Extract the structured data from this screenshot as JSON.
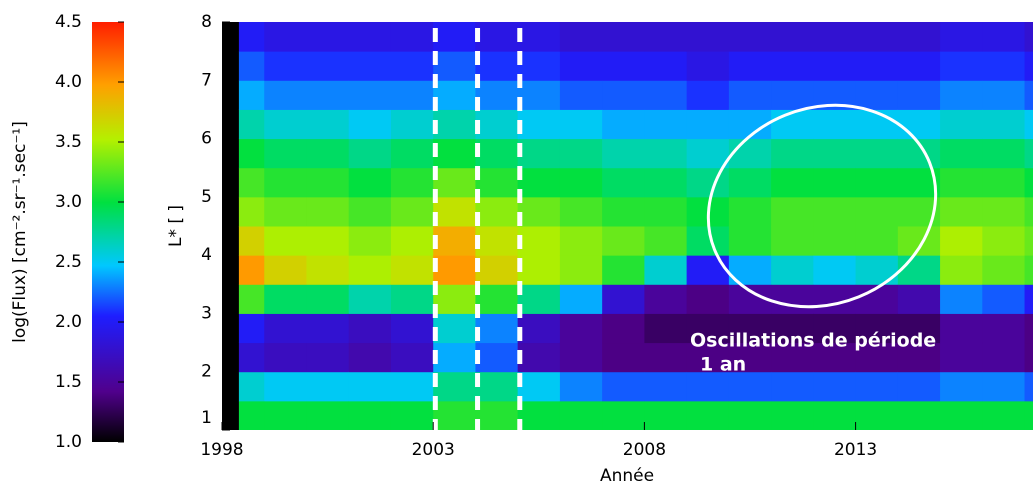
{
  "chart_data": {
    "type": "heatmap",
    "x_label": "Année",
    "y_label": "L* [ ]",
    "colorbar_label": "log(Flux) [cm⁻².sr⁻¹.sec⁻¹]",
    "x_bins": [
      1998,
      1998.4,
      1999,
      2000,
      2001,
      2002,
      2003,
      2004,
      2005,
      2006,
      2007,
      2008,
      2009,
      2010,
      2011,
      2012,
      2013,
      2014,
      2015,
      2016,
      2017,
      2017.2
    ],
    "y_bins": [
      1,
      1.5,
      2,
      2.5,
      3,
      3.5,
      4,
      4.5,
      5,
      5.5,
      6,
      6.5,
      7,
      7.5,
      8
    ],
    "values": [
      [
        null,
        null,
        null,
        null,
        null,
        null,
        null,
        null,
        null,
        null,
        null,
        null,
        null,
        null
      ],
      [
        3.0,
        2.6,
        1.8,
        2.0,
        3.2,
        4.0,
        3.7,
        3.4,
        3.2,
        3.0,
        2.7,
        2.4,
        2.2,
        2.0
      ],
      [
        3.0,
        2.5,
        1.7,
        1.8,
        2.9,
        3.7,
        3.5,
        3.3,
        3.1,
        2.9,
        2.6,
        2.3,
        2.1,
        1.9
      ],
      [
        3.0,
        2.5,
        1.7,
        1.8,
        2.9,
        3.6,
        3.5,
        3.3,
        3.1,
        2.9,
        2.6,
        2.3,
        2.1,
        1.9
      ],
      [
        3.0,
        2.5,
        1.6,
        1.7,
        2.7,
        3.5,
        3.4,
        3.2,
        3.0,
        2.8,
        2.5,
        2.3,
        2.1,
        1.9
      ],
      [
        3.0,
        2.5,
        1.7,
        1.8,
        2.8,
        3.6,
        3.5,
        3.3,
        3.1,
        2.9,
        2.6,
        2.3,
        2.1,
        1.9
      ],
      [
        3.1,
        2.8,
        2.4,
        2.6,
        3.4,
        4.0,
        3.9,
        3.6,
        3.3,
        3.0,
        2.7,
        2.4,
        2.2,
        2.0
      ],
      [
        3.1,
        2.8,
        2.2,
        2.3,
        3.1,
        3.7,
        3.6,
        3.4,
        3.1,
        2.9,
        2.6,
        2.3,
        2.1,
        1.9
      ],
      [
        3.0,
        2.5,
        1.6,
        1.7,
        2.8,
        3.5,
        3.5,
        3.3,
        3.0,
        2.8,
        2.5,
        2.3,
        2.1,
        1.9
      ],
      [
        3.0,
        2.3,
        1.5,
        1.5,
        2.4,
        3.4,
        3.4,
        3.2,
        3.0,
        2.8,
        2.5,
        2.2,
        2.0,
        1.8
      ],
      [
        3.0,
        2.2,
        1.4,
        1.4,
        1.8,
        3.1,
        3.3,
        3.1,
        2.9,
        2.7,
        2.4,
        2.2,
        2.0,
        1.8
      ],
      [
        3.0,
        2.2,
        1.4,
        1.3,
        1.5,
        2.6,
        3.2,
        3.1,
        2.9,
        2.7,
        2.4,
        2.2,
        2.0,
        1.8
      ],
      [
        3.0,
        2.2,
        1.4,
        1.3,
        1.4,
        2.0,
        2.9,
        3.0,
        2.8,
        2.6,
        2.4,
        2.1,
        1.9,
        1.8
      ],
      [
        3.0,
        2.2,
        1.4,
        1.3,
        1.5,
        2.4,
        3.1,
        3.1,
        2.9,
        2.7,
        2.4,
        2.2,
        2.0,
        1.8
      ],
      [
        3.0,
        2.2,
        1.4,
        1.3,
        1.5,
        2.6,
        3.2,
        3.2,
        3.0,
        2.8,
        2.5,
        2.2,
        2.0,
        1.8
      ],
      [
        3.0,
        2.2,
        1.4,
        1.3,
        1.5,
        2.5,
        3.2,
        3.2,
        3.0,
        2.8,
        2.5,
        2.2,
        2.0,
        1.8
      ],
      [
        3.0,
        2.2,
        1.4,
        1.3,
        1.5,
        2.6,
        3.2,
        3.2,
        3.0,
        2.8,
        2.5,
        2.2,
        2.0,
        1.8
      ],
      [
        3.0,
        2.2,
        1.4,
        1.3,
        1.6,
        2.8,
        3.3,
        3.2,
        3.0,
        2.8,
        2.5,
        2.2,
        2.0,
        1.8
      ],
      [
        3.0,
        2.3,
        1.5,
        1.5,
        2.3,
        3.4,
        3.5,
        3.3,
        3.1,
        2.9,
        2.6,
        2.3,
        2.1,
        1.9
      ],
      [
        3.0,
        2.3,
        1.5,
        1.5,
        2.2,
        3.3,
        3.4,
        3.3,
        3.1,
        2.9,
        2.6,
        2.3,
        2.1,
        1.9
      ],
      [
        3.0,
        2.2,
        1.4,
        1.4,
        2.0,
        3.2,
        3.3,
        3.2,
        3.0,
        2.8,
        2.5,
        2.2,
        2.0,
        1.8
      ]
    ],
    "xlim": [
      1998,
      2017.2
    ],
    "ylim": [
      1,
      8
    ],
    "xticks": [
      1998,
      2003,
      2008,
      2013
    ],
    "yticks": [
      1,
      2,
      3,
      4,
      5,
      6,
      7,
      8
    ],
    "clim": [
      1.0,
      4.5
    ],
    "cticks": [
      {
        "value": 1.0,
        "label": "1.0"
      },
      {
        "value": 1.5,
        "label": "1.5"
      },
      {
        "value": 2.0,
        "label": "2.0"
      },
      {
        "value": 2.5,
        "label": "2.5"
      },
      {
        "value": 3.0,
        "label": "3.0"
      },
      {
        "value": 3.5,
        "label": "3.5"
      },
      {
        "value": 4.0,
        "label": "4.0"
      },
      {
        "value": 4.5,
        "label": "4.5"
      }
    ],
    "vlines": [
      2003.05,
      2004.05,
      2005.05
    ],
    "annotation": [
      "Oscillations de période",
      "1 an"
    ]
  }
}
